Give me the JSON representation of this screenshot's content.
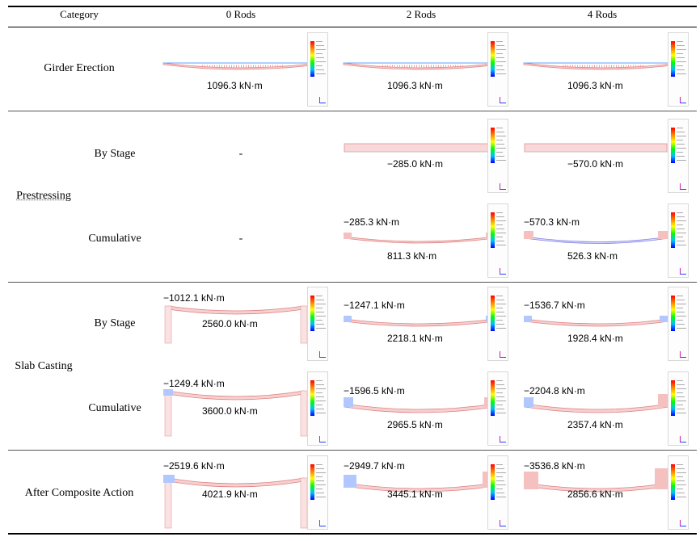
{
  "header": {
    "category": "Category",
    "cols": [
      "0 Rods",
      "2 Rods",
      "4 Rods"
    ]
  },
  "rows": {
    "girder_erection": "Girder Erection",
    "prestressing": "Prestressing",
    "slab_casting": "Slab Casting",
    "after_composite": "After Composite Action",
    "by_stage": "By Stage",
    "cumulative": "Cumulative"
  },
  "empty_cell": "-",
  "values": {
    "girder": {
      "r0": "1096.3 kN·m",
      "r2": "1096.3 kN·m",
      "r4": "1096.3 kN·m"
    },
    "pre_stage": {
      "r2": "−285.0 kN·m",
      "r4": "−570.0 kN·m"
    },
    "pre_cum": {
      "r2_neg": "−285.3 kN·m",
      "r2_pos": "811.3 kN·m",
      "r4_neg": "−570.3 kN·m",
      "r4_pos": "526.3 kN·m"
    },
    "slab_stage": {
      "r0_neg": "−1012.1 kN·m",
      "r0_pos": "2560.0 kN·m",
      "r2_neg": "−1247.1 kN·m",
      "r2_pos": "2218.1 kN·m",
      "r4_neg": "−1536.7 kN·m",
      "r4_pos": "1928.4 kN·m"
    },
    "slab_cum": {
      "r0_neg": "−1249.4 kN·m",
      "r0_pos": "3600.0 kN·m",
      "r2_neg": "−1596.5 kN·m",
      "r2_pos": "2965.5 kN·m",
      "r4_neg": "−2204.8 kN·m",
      "r4_pos": "2357.4 kN·m"
    },
    "composite": {
      "r0_neg": "−2519.6 kN·m",
      "r0_pos": "4021.9 kN·m",
      "r2_neg": "−2949.7 kN·m",
      "r2_pos": "3445.1 kN·m",
      "r4_neg": "−3536.8 kN·m",
      "r4_pos": "2856.6 kN·m"
    }
  }
}
